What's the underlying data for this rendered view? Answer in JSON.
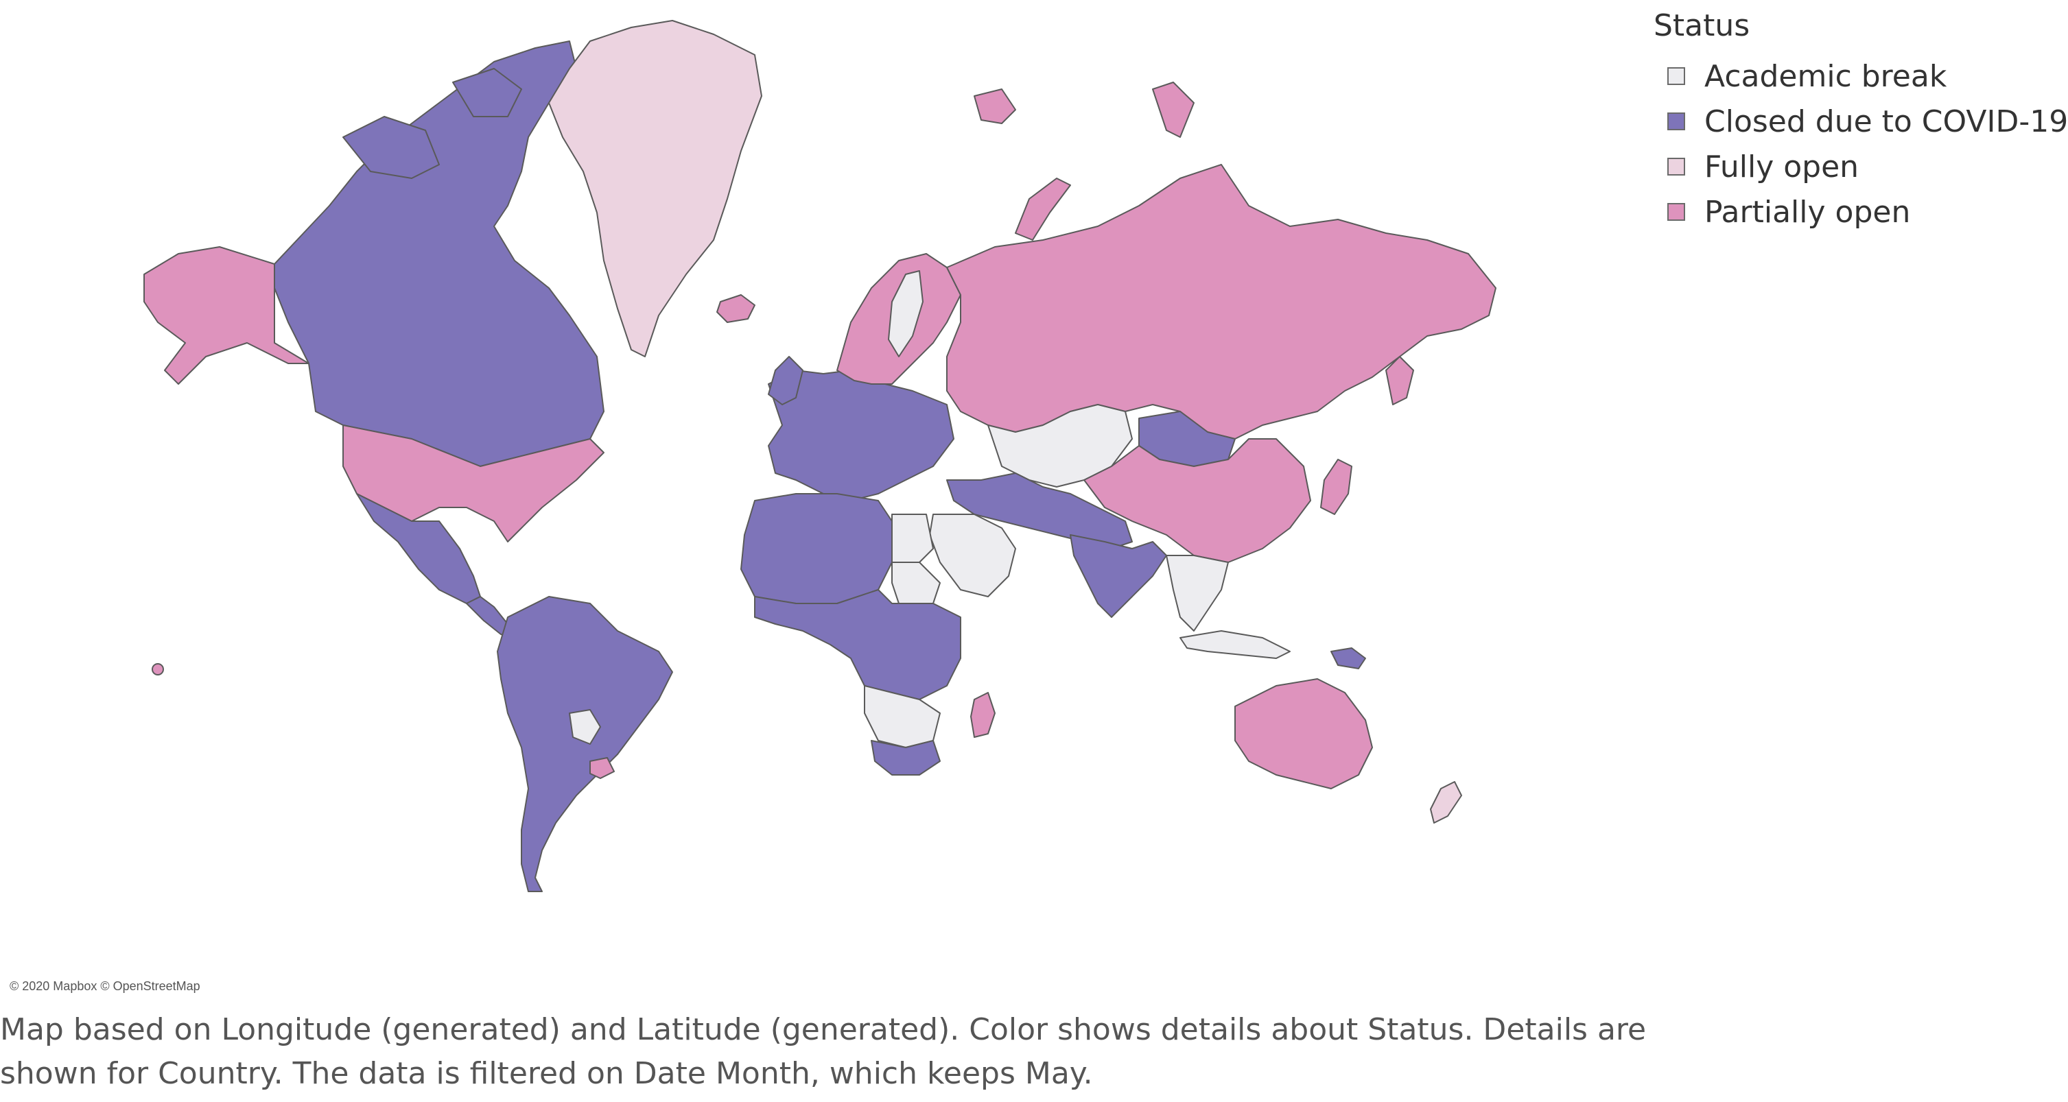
{
  "legend": {
    "title": "Status",
    "items": [
      {
        "label": "Academic break",
        "color": "#ededf0"
      },
      {
        "label": "Closed due to COVID-19",
        "color": "#7e74b9"
      },
      {
        "label": "Fully open",
        "color": "#ecd3e0"
      },
      {
        "label": "Partially open",
        "color": "#de93bd"
      }
    ]
  },
  "map": {
    "regions": [
      {
        "name": "Canada",
        "status": "Closed due to COVID-19"
      },
      {
        "name": "Alaska",
        "status": "Partially open"
      },
      {
        "name": "Greenland",
        "status": "Fully open"
      },
      {
        "name": "United States",
        "status": "Partially open"
      },
      {
        "name": "Mexico",
        "status": "Closed due to COVID-19"
      },
      {
        "name": "South America",
        "status": "Closed due to COVID-19"
      },
      {
        "name": "Paraguay",
        "status": "Academic break"
      },
      {
        "name": "Uruguay",
        "status": "Partially open"
      },
      {
        "name": "Western Europe",
        "status": "Closed due to COVID-19"
      },
      {
        "name": "Scandinavia",
        "status": "Partially open"
      },
      {
        "name": "Sweden",
        "status": "Academic break"
      },
      {
        "name": "Iceland",
        "status": "Partially open"
      },
      {
        "name": "Russia",
        "status": "Partially open"
      },
      {
        "name": "China",
        "status": "Partially open"
      },
      {
        "name": "Mongolia",
        "status": "Closed due to COVID-19"
      },
      {
        "name": "Central Asia",
        "status": "Academic break"
      },
      {
        "name": "Middle East",
        "status": "Closed due to COVID-19"
      },
      {
        "name": "Saudi Arabia",
        "status": "Academic break"
      },
      {
        "name": "India",
        "status": "Closed due to COVID-19"
      },
      {
        "name": "Southeast Asia",
        "status": "Academic break"
      },
      {
        "name": "Japan",
        "status": "Partially open"
      },
      {
        "name": "North Africa",
        "status": "Closed due to COVID-19"
      },
      {
        "name": "Egypt",
        "status": "Academic break"
      },
      {
        "name": "Sudan",
        "status": "Academic break"
      },
      {
        "name": "Central Africa",
        "status": "Closed due to COVID-19"
      },
      {
        "name": "Southern Africa",
        "status": "Academic break"
      },
      {
        "name": "South Africa",
        "status": "Closed due to COVID-19"
      },
      {
        "name": "Madagascar",
        "status": "Partially open"
      },
      {
        "name": "Indonesia",
        "status": "Academic break"
      },
      {
        "name": "Papua New Guinea",
        "status": "Closed due to COVID-19"
      },
      {
        "name": "Australia",
        "status": "Partially open"
      },
      {
        "name": "New Zealand",
        "status": "Fully open"
      },
      {
        "name": "Svalbard",
        "status": "Partially open"
      },
      {
        "name": "Novaya Zemlya",
        "status": "Partially open"
      },
      {
        "name": "Hawaii",
        "status": "Partially open"
      }
    ]
  },
  "attribution": "© 2020 Mapbox © OpenStreetMap",
  "caption": "Map based on Longitude (generated) and Latitude (generated).  Color shows details about Status.  Details are shown for Country. The data is filtered on Date Month, which keeps May."
}
